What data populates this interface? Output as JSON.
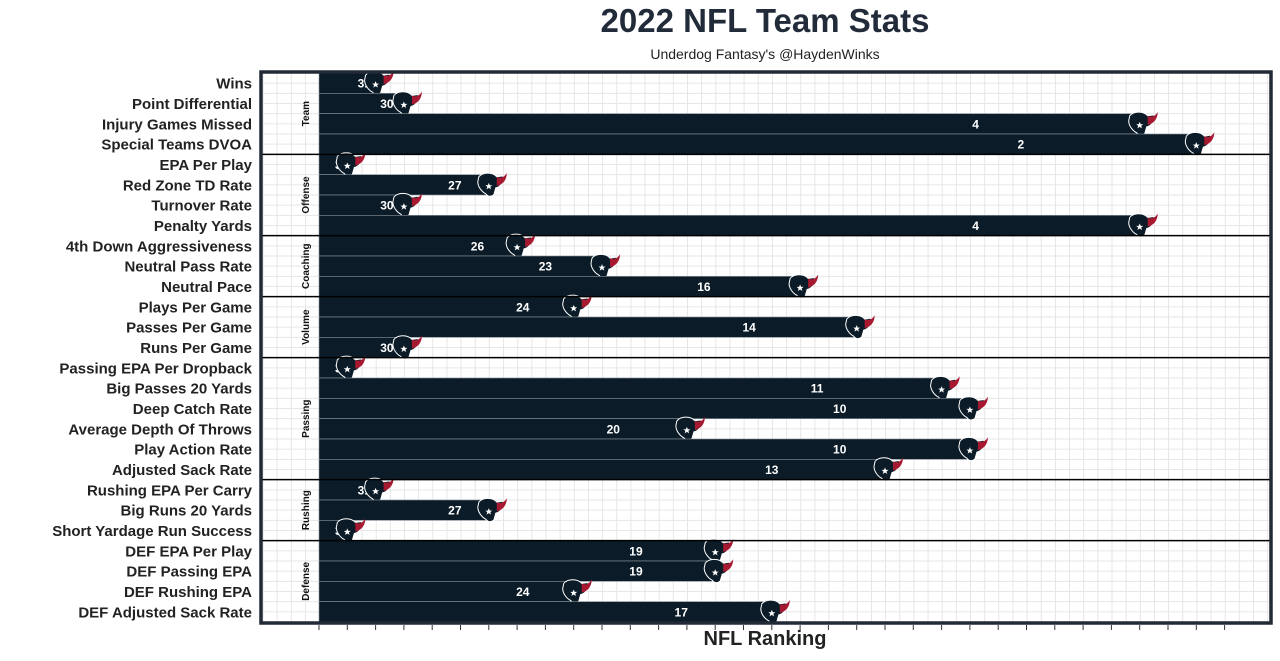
{
  "chart_data": {
    "type": "bar",
    "orientation": "horizontal",
    "title": "2022 NFL Team Stats",
    "subtitle": "Underdog Fantasy's @HaydenWinks",
    "xlabel": "NFL Ranking",
    "ylabel": "",
    "xlim_note": "bar length = 33 - rank (rank 1 longest)",
    "colors": {
      "bar": "#0b1c28",
      "logo_navy": "#0b1c28",
      "logo_red": "#a71930",
      "grid": "#e6e6e6",
      "border": "#222a36"
    },
    "groups": [
      {
        "name": "Team",
        "rows": [
          {
            "label": "Wins",
            "rank": 31
          },
          {
            "label": "Point Differential",
            "rank": 30
          },
          {
            "label": "Injury Games Missed",
            "rank": 4
          },
          {
            "label": "Special Teams DVOA",
            "rank": 2
          }
        ]
      },
      {
        "name": "Offense",
        "rows": [
          {
            "label": "EPA Per Play",
            "rank": 32
          },
          {
            "label": "Red Zone TD Rate",
            "rank": 27
          },
          {
            "label": "Turnover Rate",
            "rank": 30
          },
          {
            "label": "Penalty Yards",
            "rank": 4
          }
        ]
      },
      {
        "name": "Coaching",
        "rows": [
          {
            "label": "4th Down Aggressiveness",
            "rank": 26
          },
          {
            "label": "Neutral Pass Rate",
            "rank": 23
          },
          {
            "label": "Neutral Pace",
            "rank": 16
          }
        ]
      },
      {
        "name": "Volume",
        "rows": [
          {
            "label": "Plays Per Game",
            "rank": 24
          },
          {
            "label": "Passes Per Game",
            "rank": 14
          },
          {
            "label": "Runs Per Game",
            "rank": 30
          }
        ]
      },
      {
        "name": "Passing",
        "rows": [
          {
            "label": "Passing EPA Per Dropback",
            "rank": 32
          },
          {
            "label": "Big Passes 20 Yards",
            "rank": 11
          },
          {
            "label": "Deep Catch Rate",
            "rank": 10
          },
          {
            "label": "Average Depth Of Throws",
            "rank": 20
          },
          {
            "label": "Play Action Rate",
            "rank": 10
          },
          {
            "label": "Adjusted Sack Rate",
            "rank": 13
          }
        ]
      },
      {
        "name": "Rushing",
        "rows": [
          {
            "label": "Rushing EPA Per Carry",
            "rank": 31
          },
          {
            "label": "Big Runs 20 Yards",
            "rank": 27
          },
          {
            "label": "Short Yardage Run Success",
            "rank": 32
          }
        ]
      },
      {
        "name": "Defense",
        "rows": [
          {
            "label": "DEF EPA Per Play",
            "rank": 19
          },
          {
            "label": "DEF Passing EPA",
            "rank": 19
          },
          {
            "label": "DEF Rushing EPA",
            "rank": 24
          },
          {
            "label": "DEF Adjusted Sack Rate",
            "rank": 17
          }
        ]
      }
    ]
  }
}
